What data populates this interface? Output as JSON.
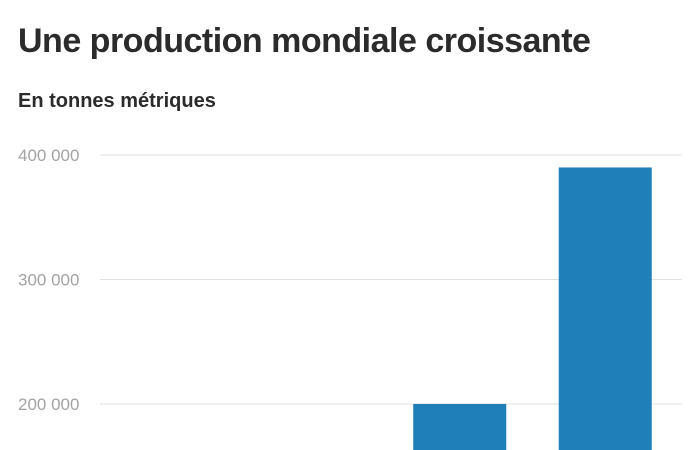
{
  "chart_data": {
    "type": "bar",
    "title": "Une production mondiale croissante",
    "subtitle": "En tonnes métriques",
    "xlabel": "",
    "ylabel": "",
    "categories": [
      "",
      "",
      "",
      ""
    ],
    "values": [
      null,
      null,
      200000,
      390000
    ],
    "ylim": [
      163000,
      400000
    ],
    "y_ticks": [
      {
        "value": 400000,
        "label": "400 000"
      },
      {
        "value": 300000,
        "label": "300 000"
      },
      {
        "value": 200000,
        "label": "200 000"
      }
    ],
    "grid": true,
    "legend": "none",
    "bar_color": "#1f7fb9"
  }
}
